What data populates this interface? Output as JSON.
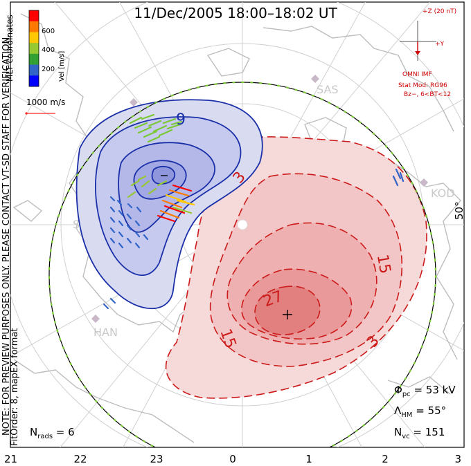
{
  "title": "11/Dec/2005 18:00–18:02 UT",
  "scale_label": "1000 m/s",
  "vel_label": "Vel [m/s]",
  "colorbar_ticks": [
    "600",
    "400",
    "200"
  ],
  "colorbar_colors": [
    "#0000ff",
    "#3264c8",
    "#32a032",
    "#96c832",
    "#ffc800",
    "#ff7800",
    "#ff0000"
  ],
  "coord_label": "MLT coordinates",
  "side_note_1": "NOTE: FOR PREVIEW PURPOSES ONLY. PLEASE CONTACT VT-SD STAFF FOR VERIFICATION.",
  "side_note_2": "FitOrder: 8, mapEX format",
  "imf": {
    "z_label": "+Z (20 nT)",
    "y_label": "+Y",
    "omni": "OMNI IMF",
    "model": "Stat Mod: RG96",
    "cond": "Bz−, 6<BT<12"
  },
  "lat_label": "50°",
  "stations": [
    "SAS",
    "KOD",
    "STO",
    "HAN"
  ],
  "stats": {
    "phi_sym": "Φ",
    "phi_sub": "pc",
    "phi_val": " = 53 kV",
    "lam_sym": "Λ",
    "lam_sub": "HM",
    "lam_val": " = 55°",
    "nvc_sym": "N",
    "nvc_sub": "vc",
    "nvc_val": " = 151",
    "nrads_sym": "N",
    "nrads_sub": "rads",
    "nrads_val": " = 6"
  },
  "chart_data": {
    "type": "contour",
    "title": "11/Dec/2005 18:00–18:02 UT",
    "x_ticks_mlt": [
      "21",
      "22",
      "23",
      "0",
      "1",
      "2",
      "3"
    ],
    "contour_labels": {
      "negative_cell": [
        "9"
      ],
      "positive_cell": [
        "3",
        "15",
        "27",
        "15",
        "3"
      ]
    },
    "potential_cross_polar_kV": 53,
    "heppner_maynard_boundary_deg": 55,
    "n_vectors": 151,
    "n_radars": 6,
    "colorbar": {
      "label": "Vel [m/s]",
      "ticks": [
        200,
        400,
        600
      ]
    },
    "reference_vector_mps": 1000,
    "colors": {
      "negative_cell": "#1a2fa8",
      "positive_cell": "#cc1a1a",
      "coast": "#c0c0c0",
      "grid": "#d0d0d0"
    }
  }
}
